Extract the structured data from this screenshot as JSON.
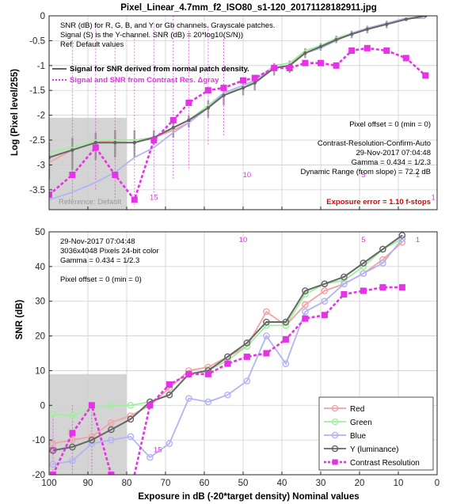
{
  "figure_title": "Pixel_Linear_4.7mm_f2_ISO80_s1-120_20171128182911.jpg",
  "xlabel": "Exposure in dB (-20*target density)   Nominal values",
  "colors": {
    "red": "#f2a3a3",
    "green": "#9ef09e",
    "blue": "#b3b3f5",
    "y": "#666666",
    "contrast": "#e633e6",
    "exposure_error": "#e60000",
    "gray_box": "#d4d4d4"
  },
  "chart_data": [
    {
      "type": "line",
      "ylabel": "Log (Pixel level/255)",
      "x_range": [
        100,
        0
      ],
      "ylim": [
        -3.9,
        0
      ],
      "xticks": [
        100,
        90,
        80,
        70,
        60,
        50,
        40,
        30,
        20,
        10,
        0
      ],
      "xtick_labels": [
        "",
        "",
        "",
        "",
        "",
        "",
        "",
        "",
        "",
        "",
        ""
      ],
      "yticks": [
        0,
        -0.5,
        -1,
        -1.5,
        -2,
        -2.5,
        -3,
        -3.5
      ],
      "ytick_labels": [
        "0",
        "-0.5",
        "-1",
        "-1.5",
        "-2",
        "-2.5",
        "-3",
        "-3.5"
      ],
      "grid": true,
      "x": [
        100,
        94,
        88,
        83,
        78,
        73,
        68,
        64,
        59,
        55,
        50,
        47,
        42,
        38,
        34,
        30,
        26,
        22,
        18,
        13,
        8,
        3
      ],
      "series": [
        {
          "name": "R",
          "color_key": "red",
          "values": [
            -2.95,
            -2.7,
            -2.55,
            -2.5,
            -2.5,
            -2.45,
            -2.3,
            -2.15,
            -1.85,
            -1.6,
            -1.45,
            -1.35,
            -1.05,
            -1.0,
            -0.7,
            -0.6,
            -0.45,
            -0.35,
            -0.25,
            -0.15,
            -0.05,
            0.0
          ]
        },
        {
          "name": "G",
          "color_key": "green",
          "values": [
            -2.75,
            -2.65,
            -2.5,
            -2.5,
            -2.5,
            -2.45,
            -2.25,
            -2.1,
            -1.8,
            -1.55,
            -1.45,
            -1.3,
            -1.0,
            -0.95,
            -0.7,
            -0.6,
            -0.45,
            -0.35,
            -0.25,
            -0.15,
            -0.05,
            0.0
          ]
        },
        {
          "name": "B",
          "color_key": "blue",
          "values": [
            -3.7,
            -3.55,
            -3.35,
            -3.15,
            -2.85,
            -2.65,
            -2.35,
            -2.15,
            -1.85,
            -1.55,
            -1.4,
            -1.3,
            -1.05,
            -1.0,
            -0.75,
            -0.65,
            -0.5,
            -0.35,
            -0.25,
            -0.15,
            -0.05,
            -0.05
          ]
        },
        {
          "name": "Y",
          "color_key": "y",
          "values": [
            -2.85,
            -2.7,
            -2.55,
            -2.55,
            -2.55,
            -2.45,
            -2.25,
            -2.1,
            -1.85,
            -1.6,
            -1.45,
            -1.35,
            -1.05,
            -1.0,
            -0.75,
            -0.62,
            -0.48,
            -0.37,
            -0.27,
            -0.17,
            -0.07,
            0.0
          ]
        },
        {
          "name": "Contrast Resolution",
          "color_key": "contrast",
          "dashed": true,
          "values": [
            -3.6,
            -3.2,
            -2.65,
            -3.2,
            -3.7,
            -2.5,
            -2.1,
            -1.75,
            -1.5,
            -1.45,
            -1.3,
            -1.25,
            -1.05,
            -1.05,
            -0.95,
            -0.95,
            -1.0,
            -0.7,
            -0.65,
            -0.7,
            -0.85,
            -1.2
          ]
        }
      ],
      "bars": {
        "color_key": "y",
        "x": [
          100,
          94,
          88,
          83,
          78,
          73,
          68,
          64,
          59,
          55,
          50,
          47,
          42,
          38,
          34,
          30,
          26,
          22,
          18,
          13
        ],
        "high": [
          -2.55,
          -2.45,
          -2.35,
          -2.3,
          -2.3,
          -2.3,
          -2.1,
          -2.0,
          -1.7,
          -1.45,
          -1.35,
          -1.25,
          -0.95,
          -0.9,
          -0.65,
          -0.55,
          -0.4,
          -0.3,
          -0.2,
          -0.1
        ],
        "low": [
          -3.3,
          -3.1,
          -2.9,
          -2.85,
          -2.85,
          -2.6,
          -2.45,
          -2.25,
          -2.05,
          -1.8,
          -1.6,
          -1.5,
          -1.2,
          -1.15,
          -0.85,
          -0.7,
          -0.55,
          -0.45,
          -0.35,
          -0.25
        ]
      },
      "contrast_bars": {
        "x": [
          100,
          94,
          88,
          83,
          78,
          73,
          68,
          64,
          59,
          55
        ],
        "high": [
          -0.9,
          -0.5,
          -0.15,
          -0.45,
          -0.4,
          -0.15,
          0.0,
          -0.3,
          -0.2,
          -0.4
        ],
        "low": [
          -3.8,
          -3.75,
          -3.5,
          -3.75,
          -3.85,
          -3.6,
          -3.3,
          -3.1,
          -2.6,
          -2.4
        ]
      },
      "gray_region": {
        "x": [
          100,
          80
        ],
        "y": [
          -3.9,
          -2.05
        ]
      },
      "number_labels": [
        {
          "x": 73,
          "y": -3.7,
          "text": "15"
        },
        {
          "x": 49,
          "y": -3.25,
          "text": "10"
        },
        {
          "x": 19,
          "y": -3.25,
          "text": "5"
        },
        {
          "x": 5,
          "y": -3.25,
          "text": "1"
        },
        {
          "x": 1,
          "y": -3.7,
          "text": "1"
        }
      ],
      "info_top_left": [
        "SNR (dB) for R, G, B, and Y or Gb channels.  Grayscale patches.",
        "Signal (S) is the Y-channel.  SNR (dB) = 20*log10(S/N))",
        "Ref: Default values"
      ],
      "legend": [
        {
          "label": "Signal for SNR derived from normal patch density.",
          "color_key": "y",
          "dashed": false
        },
        {
          "label": "Signal and SNR from Contrast Res.  Δgray",
          "color_key": "contrast",
          "dashed": true
        }
      ],
      "info_right": [
        "Pixel offset = 0  (min = 0)",
        "",
        "Contrast-Resolution-Confirm-Auto",
        "29-Nov-2017 07:04:48",
        "Gamma = 0.434 = 1/2.3",
        "Dynamic Range (from slope) = 72.2 dB"
      ],
      "reference_label": "Reference: Default",
      "exposure_error": "Exposure error = 1.10 f-stops"
    },
    {
      "type": "line",
      "ylabel": "SNR (dB)",
      "x_range": [
        100,
        0
      ],
      "ylim": [
        -20,
        50
      ],
      "xticks": [
        100,
        90,
        80,
        70,
        60,
        50,
        40,
        30,
        20,
        10,
        0
      ],
      "xtick_labels": [
        "100",
        "90",
        "80",
        "70",
        "60",
        "50",
        "40",
        "30",
        "20",
        "10",
        "0"
      ],
      "yticks": [
        50,
        40,
        30,
        20,
        10,
        0,
        -10,
        -20
      ],
      "ytick_labels": [
        "50",
        "40",
        "30",
        "20",
        "10",
        "0",
        "-10",
        "-20"
      ],
      "grid": true,
      "x": [
        99,
        94,
        89,
        84,
        79,
        74,
        69,
        64,
        59,
        54,
        49,
        44,
        39,
        34,
        29,
        24,
        19,
        14,
        9
      ],
      "series": [
        {
          "name": "Red",
          "color_key": "red",
          "values": [
            -11,
            -10,
            -9,
            -5,
            -3,
            0,
            5,
            10,
            11,
            14,
            17,
            27,
            23,
            29,
            33,
            35,
            38,
            42,
            47
          ]
        },
        {
          "name": "Green",
          "color_key": "green",
          "values": [
            -2.5,
            -3,
            -1,
            0,
            0,
            1,
            3,
            9,
            10,
            13,
            17,
            23,
            23,
            32,
            35,
            36,
            40,
            45,
            48
          ]
        },
        {
          "name": "Blue",
          "color_key": "blue",
          "values": [
            -17,
            -16,
            -11,
            -10,
            -9,
            -15,
            -11,
            2,
            1,
            3,
            7,
            20,
            12,
            27,
            30,
            35,
            38,
            41,
            48
          ]
        },
        {
          "name": "Y (luminance)",
          "color_key": "y",
          "values": [
            -13,
            -12,
            -10,
            -7,
            -4,
            1,
            3,
            9,
            10,
            14,
            18,
            24,
            24,
            33,
            35,
            37,
            41,
            45,
            49
          ]
        },
        {
          "name": "Contrast Resolution",
          "color_key": "contrast",
          "dashed": true,
          "values": [
            -20,
            -8,
            0,
            -20,
            -25,
            0,
            6,
            9,
            9,
            12,
            14,
            15,
            19,
            25,
            26,
            32,
            33,
            34,
            34
          ]
        }
      ],
      "contrast_bars": {
        "x": [
          99,
          94,
          89
        ],
        "high": [
          -3,
          0,
          1
        ],
        "low": [
          -20,
          -20,
          -20
        ]
      },
      "gray_region": {
        "x": [
          100,
          80
        ],
        "y": [
          -20,
          9
        ]
      },
      "number_labels": [
        {
          "x": 99,
          "y": -13.5,
          "text": "20"
        },
        {
          "x": 72,
          "y": -13.5,
          "text": "15"
        },
        {
          "x": 50,
          "y": 47,
          "text": "10"
        },
        {
          "x": 19,
          "y": 47,
          "text": "5"
        },
        {
          "x": 5,
          "y": 47,
          "text": "1"
        }
      ],
      "info_top_left": [
        "29-Nov-2017 07:04:48",
        "3036x4048 Pixels  24-bit color",
        "Gamma = 0.434 = 1/2.3",
        "",
        "Pixel offset = 0  (min = 0)"
      ],
      "legend_position": "lower-right",
      "legend": [
        {
          "label": "Red",
          "color_key": "red",
          "dashed": false
        },
        {
          "label": "Green",
          "color_key": "green",
          "dashed": false
        },
        {
          "label": "Blue",
          "color_key": "blue",
          "dashed": false
        },
        {
          "label": "Y (luminance)",
          "color_key": "y",
          "dashed": false
        },
        {
          "label": "Contrast Resolution",
          "color_key": "contrast",
          "dashed": true
        }
      ]
    }
  ]
}
